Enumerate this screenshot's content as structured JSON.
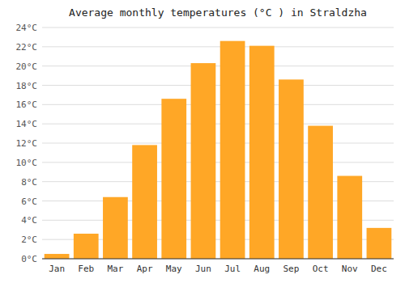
{
  "chart_data": {
    "type": "bar",
    "title": "Average monthly temperatures (°C ) in Straldzha",
    "categories": [
      "Jan",
      "Feb",
      "Mar",
      "Apr",
      "May",
      "Jun",
      "Jul",
      "Aug",
      "Sep",
      "Oct",
      "Nov",
      "Dec"
    ],
    "values": [
      0.5,
      2.6,
      6.4,
      11.8,
      16.6,
      20.3,
      22.6,
      22.1,
      18.6,
      13.8,
      8.6,
      3.2
    ],
    "color": "#FFA726",
    "ylim": [
      0,
      24
    ],
    "yticks": [
      {
        "value": 0,
        "label": "0°C"
      },
      {
        "value": 2,
        "label": "2°C"
      },
      {
        "value": 4,
        "label": "4°C"
      },
      {
        "value": 6,
        "label": "6°C"
      },
      {
        "value": 8,
        "label": "8°C"
      },
      {
        "value": 10,
        "label": "10°C"
      },
      {
        "value": 12,
        "label": "12°C"
      },
      {
        "value": 14,
        "label": "14°C"
      },
      {
        "value": 16,
        "label": "16°C"
      },
      {
        "value": 18,
        "label": "18°C"
      },
      {
        "value": 20,
        "label": "20°C"
      },
      {
        "value": 22,
        "label": "22°C"
      },
      {
        "value": 24,
        "label": "24°C"
      }
    ],
    "grid": true
  }
}
